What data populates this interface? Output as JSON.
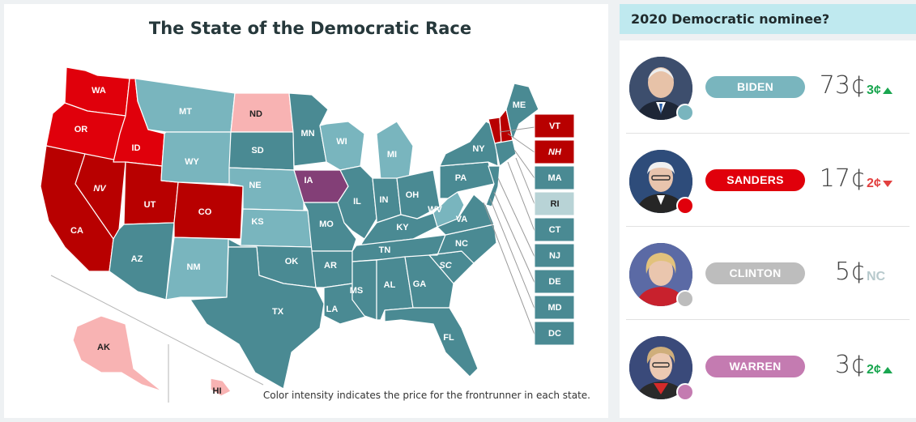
{
  "map": {
    "title": "The State of the Democratic Race",
    "caption": "Color intensity indicates the price for the frontrunner in each state.",
    "colors": {
      "biden_strong": "#4a8a93",
      "biden_light": "#79b5be",
      "biden_pale": "#b8d3d6",
      "sanders_strong": "#b80000",
      "sanders_mid": "#e0000b",
      "sanders_pale": "#f8b3b3",
      "iowa": "#833f77"
    },
    "states": {
      "WA": "WA",
      "OR": "OR",
      "CA": "CA",
      "NV": "NV",
      "ID": "ID",
      "UT": "UT",
      "AZ": "AZ",
      "MT": "MT",
      "WY": "WY",
      "CO": "CO",
      "NM": "NM",
      "ND": "ND",
      "SD": "SD",
      "NE": "NE",
      "KS": "KS",
      "OK": "OK",
      "TX": "TX",
      "MN": "MN",
      "IA": "IA",
      "MO": "MO",
      "AR": "AR",
      "LA": "LA",
      "WI": "WI",
      "IL": "IL",
      "MI": "MI",
      "IN": "IN",
      "OH": "OH",
      "KY": "KY",
      "TN": "TN",
      "MS": "MS",
      "AL": "AL",
      "GA": "GA",
      "FL": "FL",
      "SC": "SC",
      "NC": "NC",
      "VA": "VA",
      "WV": "WV",
      "PA": "PA",
      "NY": "NY",
      "ME": "ME",
      "AK": "AK",
      "HI": "HI"
    },
    "northeast_boxes": [
      "VT",
      "NH",
      "MA",
      "RI",
      "CT",
      "NJ",
      "DE",
      "MD",
      "DC"
    ]
  },
  "market": {
    "question": "2020 Democratic nominee?",
    "candidates": [
      {
        "name": "BIDEN",
        "price": "73¢",
        "change": "3¢",
        "direction": "up",
        "color": "#79b5be"
      },
      {
        "name": "SANDERS",
        "price": "17¢",
        "change": "2¢",
        "direction": "down",
        "color": "#e0000b"
      },
      {
        "name": "CLINTON",
        "price": "5¢",
        "change": "NC",
        "direction": "none",
        "color": "#bdbdbd"
      },
      {
        "name": "WARREN",
        "price": "3¢",
        "change": "2¢",
        "direction": "up",
        "color": "#c47bb1"
      }
    ]
  }
}
